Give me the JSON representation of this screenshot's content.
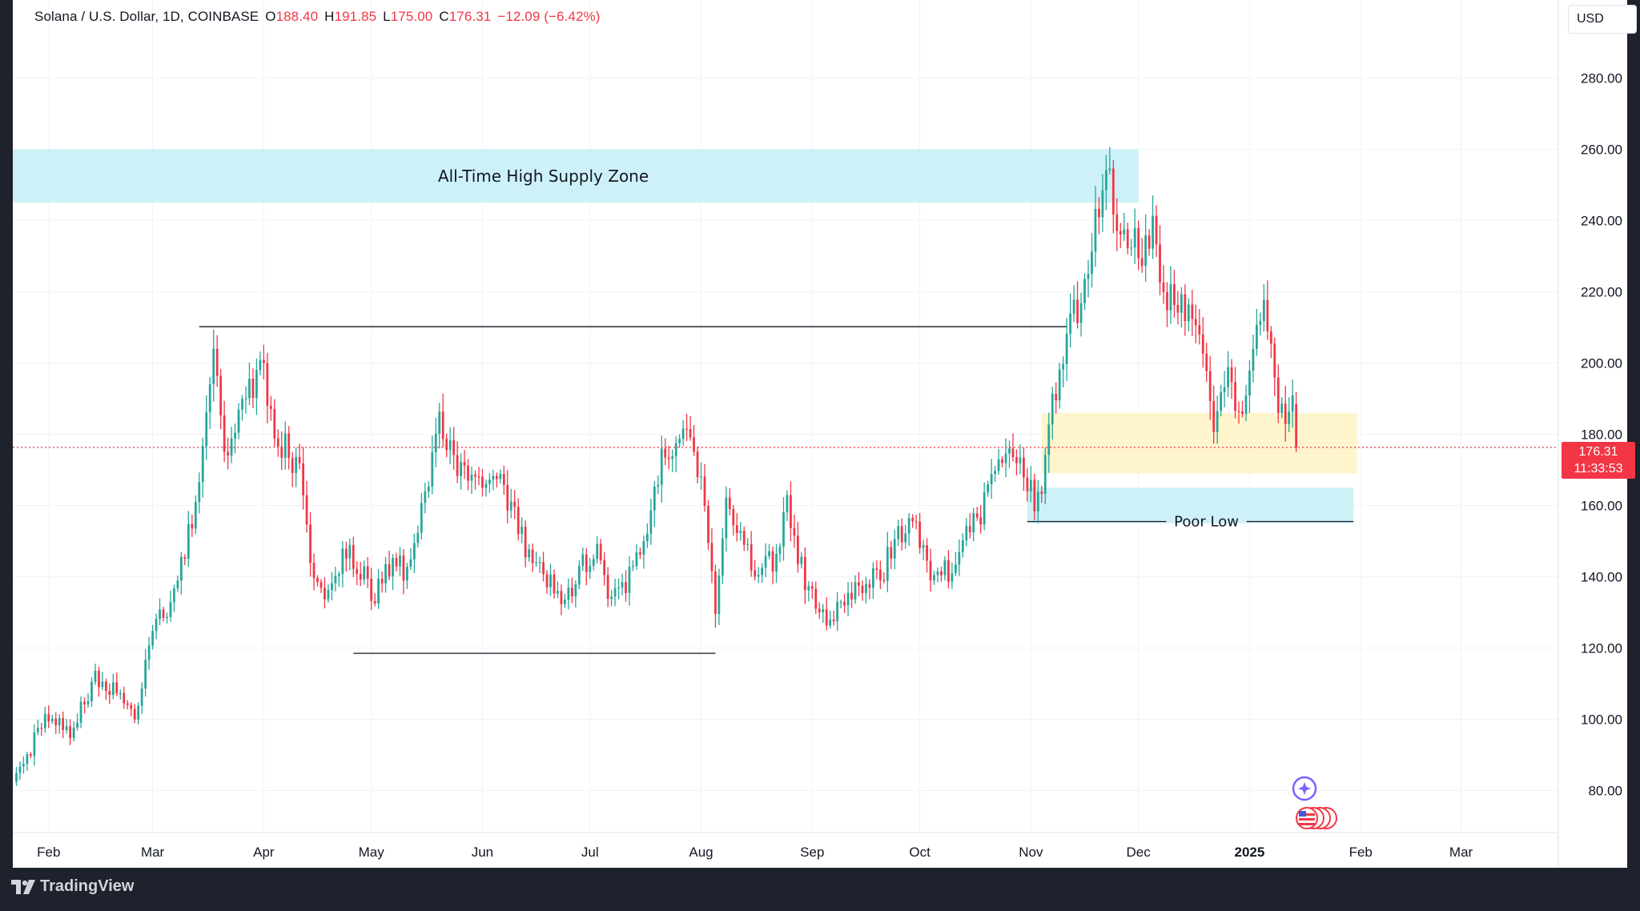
{
  "header": {
    "symbol": "Solana / U.S. Dollar, 1D, COINBASE",
    "open_label": "O",
    "open_value": "188.40",
    "high_label": "H",
    "high_value": "191.85",
    "low_label": "L",
    "low_value": "175.00",
    "close_label": "C",
    "close_value": "176.31",
    "change": "−12.09 (−6.42%)"
  },
  "currency_button": "USD",
  "price_tag": {
    "price": "176.31",
    "countdown": "11:33:53"
  },
  "footer": {
    "brand": "TradingView"
  },
  "colors": {
    "up": "#26a69a",
    "down": "#f23645",
    "supply_zone": "#cdf1f7",
    "demand_zone": "#fff5cc",
    "grid": "#f0f3fa",
    "frame": "#1e222d"
  },
  "icons": [
    "event-star-icon",
    "us-flag-icons",
    "tradingview-logo-icon"
  ],
  "chart_data": {
    "type": "candlestick",
    "title": "Solana / U.S. Dollar, 1D, COINBASE",
    "xlabel": "",
    "ylabel": "",
    "y_ticks": [
      "80.00",
      "100.00",
      "120.00",
      "140.00",
      "160.00",
      "180.00",
      "200.00",
      "220.00",
      "240.00",
      "260.00",
      "280.00"
    ],
    "x_ticks": [
      {
        "date": "2024-02-01",
        "label": "Feb"
      },
      {
        "date": "2024-03-01",
        "label": "Mar"
      },
      {
        "date": "2024-04-01",
        "label": "Apr"
      },
      {
        "date": "2024-05-01",
        "label": "May"
      },
      {
        "date": "2024-06-01",
        "label": "Jun"
      },
      {
        "date": "2024-07-01",
        "label": "Jul"
      },
      {
        "date": "2024-08-01",
        "label": "Aug"
      },
      {
        "date": "2024-09-01",
        "label": "Sep"
      },
      {
        "date": "2024-10-01",
        "label": "Oct"
      },
      {
        "date": "2024-11-01",
        "label": "Nov"
      },
      {
        "date": "2024-12-01",
        "label": "Dec"
      },
      {
        "date": "2025-01-01",
        "label": "2025"
      },
      {
        "date": "2025-02-01",
        "label": "Feb"
      },
      {
        "date": "2025-03-01",
        "label": "Mar"
      }
    ],
    "x_range": [
      "2024-01-22",
      "2025-03-25"
    ],
    "ylim": [
      70,
      292
    ],
    "grid": true,
    "last_price": 176.31,
    "anchors": [
      [
        "2024-01-23",
        84
      ],
      [
        "2024-01-31",
        100
      ],
      [
        "2024-02-07",
        97
      ],
      [
        "2024-02-14",
        112
      ],
      [
        "2024-02-21",
        106
      ],
      [
        "2024-02-25",
        101
      ],
      [
        "2024-03-02",
        128
      ],
      [
        "2024-03-05",
        132
      ],
      [
        "2024-03-09",
        143
      ],
      [
        "2024-03-13",
        160
      ],
      [
        "2024-03-18",
        202
      ],
      [
        "2024-03-21",
        175
      ],
      [
        "2024-03-24",
        182
      ],
      [
        "2024-03-28",
        192
      ],
      [
        "2024-04-01",
        198
      ],
      [
        "2024-04-04",
        180
      ],
      [
        "2024-04-08",
        175
      ],
      [
        "2024-04-11",
        168
      ],
      [
        "2024-04-14",
        143
      ],
      [
        "2024-04-18",
        134
      ],
      [
        "2024-04-24",
        147
      ],
      [
        "2024-04-29",
        140
      ],
      [
        "2024-05-01",
        133
      ],
      [
        "2024-05-07",
        145
      ],
      [
        "2024-05-11",
        141
      ],
      [
        "2024-05-15",
        158
      ],
      [
        "2024-05-20",
        186
      ],
      [
        "2024-05-24",
        170
      ],
      [
        "2024-05-30",
        165
      ],
      [
        "2024-06-05",
        170
      ],
      [
        "2024-06-09",
        159
      ],
      [
        "2024-06-13",
        148
      ],
      [
        "2024-06-18",
        142
      ],
      [
        "2024-06-24",
        132
      ],
      [
        "2024-06-28",
        143
      ],
      [
        "2024-07-03",
        146
      ],
      [
        "2024-07-07",
        134
      ],
      [
        "2024-07-12",
        140
      ],
      [
        "2024-07-17",
        155
      ],
      [
        "2024-07-21",
        175
      ],
      [
        "2024-07-25",
        178
      ],
      [
        "2024-07-28",
        184
      ],
      [
        "2024-08-01",
        167
      ],
      [
        "2024-08-05",
        131
      ],
      [
        "2024-08-08",
        160
      ],
      [
        "2024-08-12",
        150
      ],
      [
        "2024-08-16",
        143
      ],
      [
        "2024-08-22",
        145
      ],
      [
        "2024-08-25",
        160
      ],
      [
        "2024-08-28",
        145
      ],
      [
        "2024-09-02",
        131
      ],
      [
        "2024-09-06",
        128
      ],
      [
        "2024-09-10",
        132
      ],
      [
        "2024-09-15",
        138
      ],
      [
        "2024-09-20",
        140
      ],
      [
        "2024-09-25",
        152
      ],
      [
        "2024-09-29",
        157
      ],
      [
        "2024-10-03",
        142
      ],
      [
        "2024-10-07",
        142
      ],
      [
        "2024-10-10",
        140
      ],
      [
        "2024-10-14",
        152
      ],
      [
        "2024-10-18",
        158
      ],
      [
        "2024-10-22",
        168
      ],
      [
        "2024-10-26",
        175
      ],
      [
        "2024-10-29",
        172
      ],
      [
        "2024-11-02",
        162
      ],
      [
        "2024-11-04",
        160
      ],
      [
        "2024-11-06",
        185
      ],
      [
        "2024-11-09",
        196
      ],
      [
        "2024-11-12",
        218
      ],
      [
        "2024-11-15",
        212
      ],
      [
        "2024-11-19",
        238
      ],
      [
        "2024-11-22",
        256
      ],
      [
        "2024-11-25",
        238
      ],
      [
        "2024-11-28",
        237
      ],
      [
        "2024-12-02",
        230
      ],
      [
        "2024-12-05",
        236
      ],
      [
        "2024-12-09",
        220
      ],
      [
        "2024-12-12",
        218
      ],
      [
        "2024-12-16",
        215
      ],
      [
        "2024-12-19",
        198
      ],
      [
        "2024-12-22",
        185
      ],
      [
        "2024-12-26",
        195
      ],
      [
        "2024-12-29",
        188
      ],
      [
        "2025-01-01",
        195
      ],
      [
        "2025-01-04",
        215
      ],
      [
        "2025-01-07",
        210
      ],
      [
        "2025-01-09",
        190
      ],
      [
        "2025-01-12",
        186
      ],
      [
        "2025-01-13",
        188.4
      ],
      [
        "2025-01-14",
        176.31
      ]
    ],
    "annotations": [
      {
        "type": "zone",
        "label": "All-Time High Supply Zone",
        "from": "2024-01-22",
        "to": "2024-12-01",
        "y1": 245,
        "y2": 260,
        "color": "supply"
      },
      {
        "type": "zone",
        "label": "",
        "from": "2024-11-04",
        "to": "2025-01-31",
        "y1": 169,
        "y2": 186,
        "color": "demand"
      },
      {
        "type": "zone",
        "label": "Poor Low",
        "from": "2024-10-31",
        "to": "2025-01-30",
        "y1": 155,
        "y2": 165,
        "color": "supply"
      },
      {
        "type": "hline",
        "label": "",
        "from": "2024-03-14",
        "to": "2024-11-11",
        "y": 210.2
      },
      {
        "type": "hline",
        "label": "",
        "from": "2024-04-26",
        "to": "2024-08-05",
        "y": 118.5
      },
      {
        "type": "hline",
        "label": "Poor Low",
        "from": "2024-10-31",
        "to": "2025-01-30",
        "y": 155.5
      },
      {
        "type": "hline",
        "label": "",
        "from": "2024-01-22",
        "to": "2025-03-25",
        "y": 176.31,
        "style": "dotted"
      }
    ]
  }
}
